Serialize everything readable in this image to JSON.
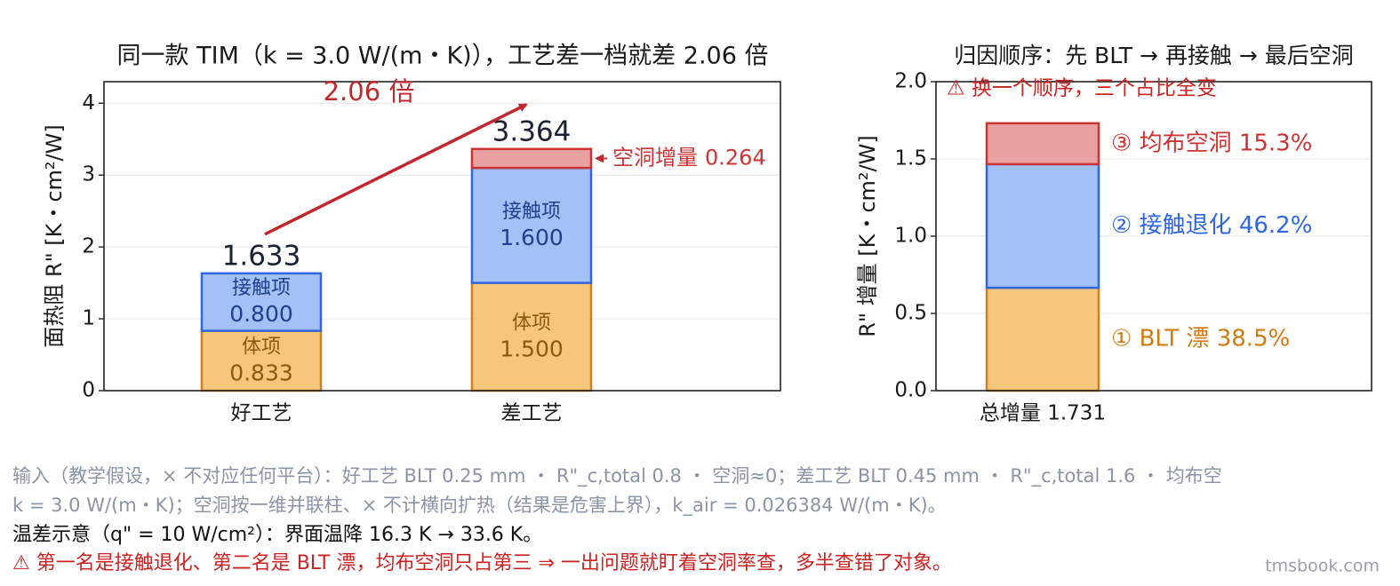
{
  "chart_data": [
    {
      "type": "bar",
      "stacked": true,
      "title": "同一款 TIM（k = 3.0 W/(m・K)），工艺差一档就差 2.06 倍",
      "ylabel": "面热阻 R\" [K・cm²/W]",
      "categories": [
        "好工艺",
        "差工艺"
      ],
      "series": [
        {
          "name": "体项",
          "color": "#f5c67c",
          "edgecolor": "#d08020",
          "text_color": "#8a5a10",
          "label_position": "inside",
          "values": [
            0.833,
            1.5
          ],
          "value_labels": [
            "0.833",
            "1.500"
          ]
        },
        {
          "name": "接触项",
          "color": "#a3c1f5",
          "edgecolor": "#2f66e0",
          "text_color": "#1f3f8f",
          "label_position": "inside",
          "values": [
            0.8,
            1.6
          ],
          "value_labels": [
            "0.800",
            "1.600"
          ]
        },
        {
          "name": "空洞增量",
          "color": "#e8a0a0",
          "edgecolor": "#cc3333",
          "text_color": "#cc3333",
          "label_position": "right",
          "values": [
            0,
            0.264
          ]
        }
      ],
      "totals": [
        1.633,
        3.364
      ],
      "annotation": "2.06 倍",
      "ylim": [
        0,
        4.3
      ],
      "yticks": [
        0,
        1,
        2,
        3,
        4
      ],
      "grid": true
    },
    {
      "type": "bar",
      "stacked": true,
      "title": "归因顺序：先 BLT → 再接触 → 最后空洞",
      "ylabel": "R\" 增量 [K・cm²/W]",
      "categories": [
        "总增量 1.731"
      ],
      "series": [
        {
          "name": "① BLT 漂  38.5%",
          "color": "#f5c67c",
          "edgecolor": "#d08020",
          "text_color": "#d07a10",
          "label_position": "side",
          "values": [
            0.666
          ]
        },
        {
          "name": "② 接触退化  46.2%",
          "color": "#a3c1f5",
          "edgecolor": "#2f66e0",
          "text_color": "#2f66e0",
          "label_position": "side",
          "values": [
            0.8
          ]
        },
        {
          "name": "③ 均布空洞  15.3%",
          "color": "#e8a0a0",
          "edgecolor": "#cc3333",
          "text_color": "#cc3333",
          "label_position": "side",
          "values": [
            0.265
          ]
        }
      ],
      "annotation": "⚠ 换一个顺序，三个占比全变",
      "ylim": [
        0,
        2.0
      ],
      "yticks": [
        {
          "value": 0,
          "label": "0.0"
        },
        0.5,
        {
          "value": 1,
          "label": "1.0"
        },
        1.5,
        {
          "value": 2,
          "label": "2.0"
        }
      ],
      "grid": true
    }
  ],
  "footer": {
    "notes": [
      "输入（教学假设，× 不对应任何平台）：好工艺 BLT 0.25 mm ・ R\"_c,total 0.8 ・ 空洞≈0；差工艺 BLT 0.45 mm ・ R\"_c,total 1.6 ・ 均布空",
      "k = 3.0 W/(m・K)；空洞按一维并联柱、× 不计横向扩热（结果是危害上界），k_air = 0.026384 W/(m・K)。"
    ],
    "example": "温差示意（q\" = 10 W/cm²）：界面温降 16.3 K → 33.6 K。",
    "warning": "⚠ 第一名是接触退化、第二名是 BLT 漂，均布空洞只占第三 ⇒ 一出问题就盯着空洞率查，多半查错了对象。",
    "watermark": "tmsbook.com"
  }
}
